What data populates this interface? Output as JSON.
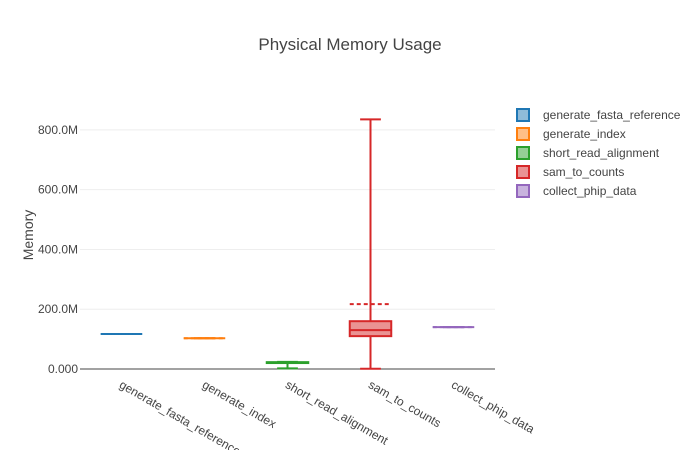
{
  "chart_data": {
    "type": "box",
    "title": "Physical Memory Usage",
    "xlabel": "",
    "ylabel": "Memory",
    "categories": [
      "generate_fasta_reference",
      "generate_index",
      "short_read_alignment",
      "sam_to_counts",
      "collect_phip_data"
    ],
    "y_ticks": [
      0,
      200,
      400,
      600,
      800
    ],
    "y_tick_labels": [
      "0.000",
      "200.0M",
      "400.0M",
      "600.0M",
      "800.0M"
    ],
    "ylim": [
      -20,
      900
    ],
    "grid": true,
    "legend_position": "top-right",
    "series": [
      {
        "name": "generate_fasta_reference",
        "color": "#1f77b4",
        "min": 117,
        "q1": 117,
        "median": 117,
        "q3": 117,
        "max": 117,
        "mean": 117
      },
      {
        "name": "generate_index",
        "color": "#ff7f0e",
        "min": 103,
        "q1": 103,
        "median": 103,
        "q3": 103,
        "max": 103,
        "mean": 103
      },
      {
        "name": "short_read_alignment",
        "color": "#2ca02c",
        "min": 2,
        "q1": 20,
        "median": 22,
        "q3": 23,
        "max": 24,
        "mean": 21
      },
      {
        "name": "sam_to_counts",
        "color": "#d62728",
        "min": 1,
        "q1": 110,
        "median": 130,
        "q3": 160,
        "max": 835,
        "mean": 217
      },
      {
        "name": "collect_phip_data",
        "color": "#9467bd",
        "min": 140,
        "q1": 140,
        "median": 140,
        "q3": 140,
        "max": 140,
        "mean": 140
      }
    ]
  }
}
